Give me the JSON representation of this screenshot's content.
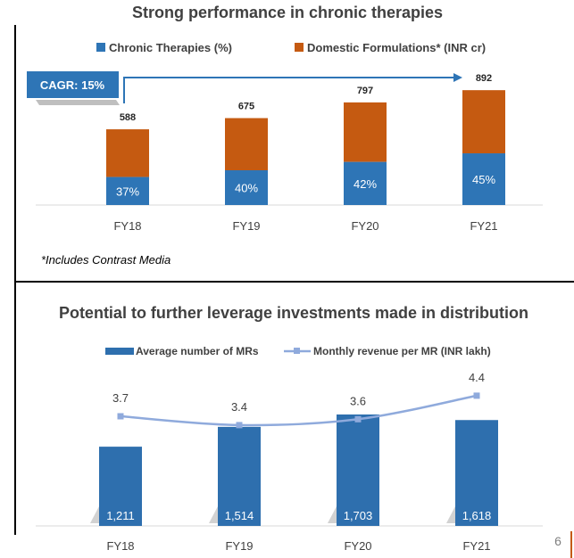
{
  "page_number": "6",
  "chart_data": [
    {
      "type": "bar",
      "title": "Strong performance in chronic therapies",
      "categories": [
        "FY18",
        "FY19",
        "FY20",
        "FY21"
      ],
      "series": [
        {
          "name": "Chronic Therapies (%)",
          "values": [
            37,
            40,
            42,
            45
          ],
          "labels": [
            "37%",
            "40%",
            "42%",
            "45%"
          ],
          "color": "#2E75B6"
        },
        {
          "name": "Domestic Formulations* (INR cr)",
          "values": [
            588,
            675,
            797,
            892
          ],
          "labels": [
            "588",
            "675",
            "797",
            "892"
          ],
          "color": "#C55A11"
        }
      ],
      "stacked": true,
      "annotation": "CAGR: 15%",
      "footnote": "*Includes Contrast Media",
      "ylim": [
        0,
        1000
      ],
      "legend": "top"
    },
    {
      "type": "bar",
      "title": "Potential to further leverage investments made in distribution",
      "categories": [
        "FY18",
        "FY19",
        "FY20",
        "FY21"
      ],
      "series": [
        {
          "name": "Average number of MRs",
          "type": "bar",
          "values": [
            1211,
            1514,
            1703,
            1618
          ],
          "labels": [
            "1,211",
            "1,514",
            "1,703",
            "1,618"
          ],
          "color": "#2E6FAE"
        },
        {
          "name": "Monthly revenue per MR (INR lakh)",
          "type": "line",
          "values": [
            3.7,
            3.4,
            3.6,
            4.4
          ],
          "labels": [
            "3.7",
            "3.4",
            "3.6",
            "4.4"
          ],
          "color": "#8FAADC"
        }
      ],
      "ylim": [
        0,
        1800
      ],
      "y2lim": [
        0,
        6
      ],
      "legend": "top"
    }
  ]
}
